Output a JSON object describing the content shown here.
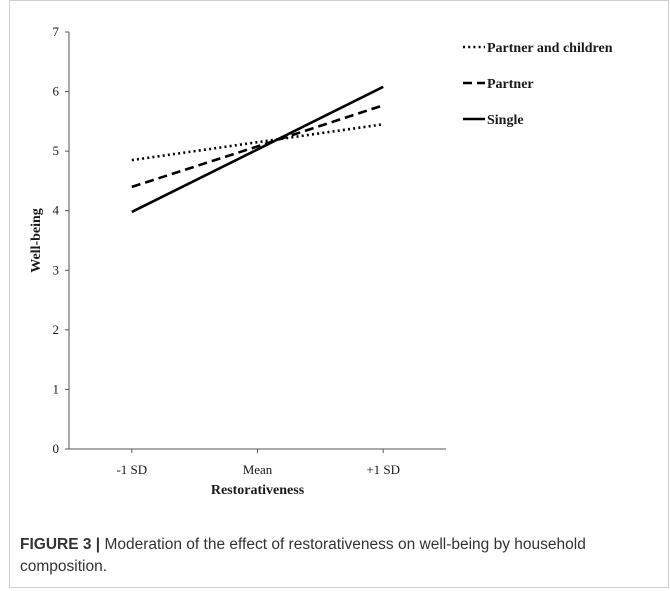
{
  "chart_data": {
    "type": "line",
    "categories": [
      "-1 SD",
      "Mean",
      "+1 SD"
    ],
    "xlabel": "Restorativeness",
    "ylabel": "Well-being",
    "ylim": [
      0,
      7
    ],
    "yticks": [
      "0",
      "1",
      "2",
      "3",
      "4",
      "5",
      "6",
      "7"
    ],
    "grid": false,
    "legend_position": "top-right",
    "series": [
      {
        "name": "Partner and children",
        "style": "dotted",
        "color": "#000000",
        "values": [
          4.85,
          5.15,
          5.45
        ]
      },
      {
        "name": "Partner",
        "style": "dashed",
        "color": "#000000",
        "values": [
          4.4,
          5.08,
          5.77
        ]
      },
      {
        "name": "Single",
        "style": "solid",
        "color": "#000000",
        "values": [
          3.98,
          5.03,
          6.08
        ]
      }
    ]
  },
  "caption": {
    "label": "FIGURE 3 |",
    "text": " Moderation of the effect of restorativeness on well-being by household composition."
  }
}
